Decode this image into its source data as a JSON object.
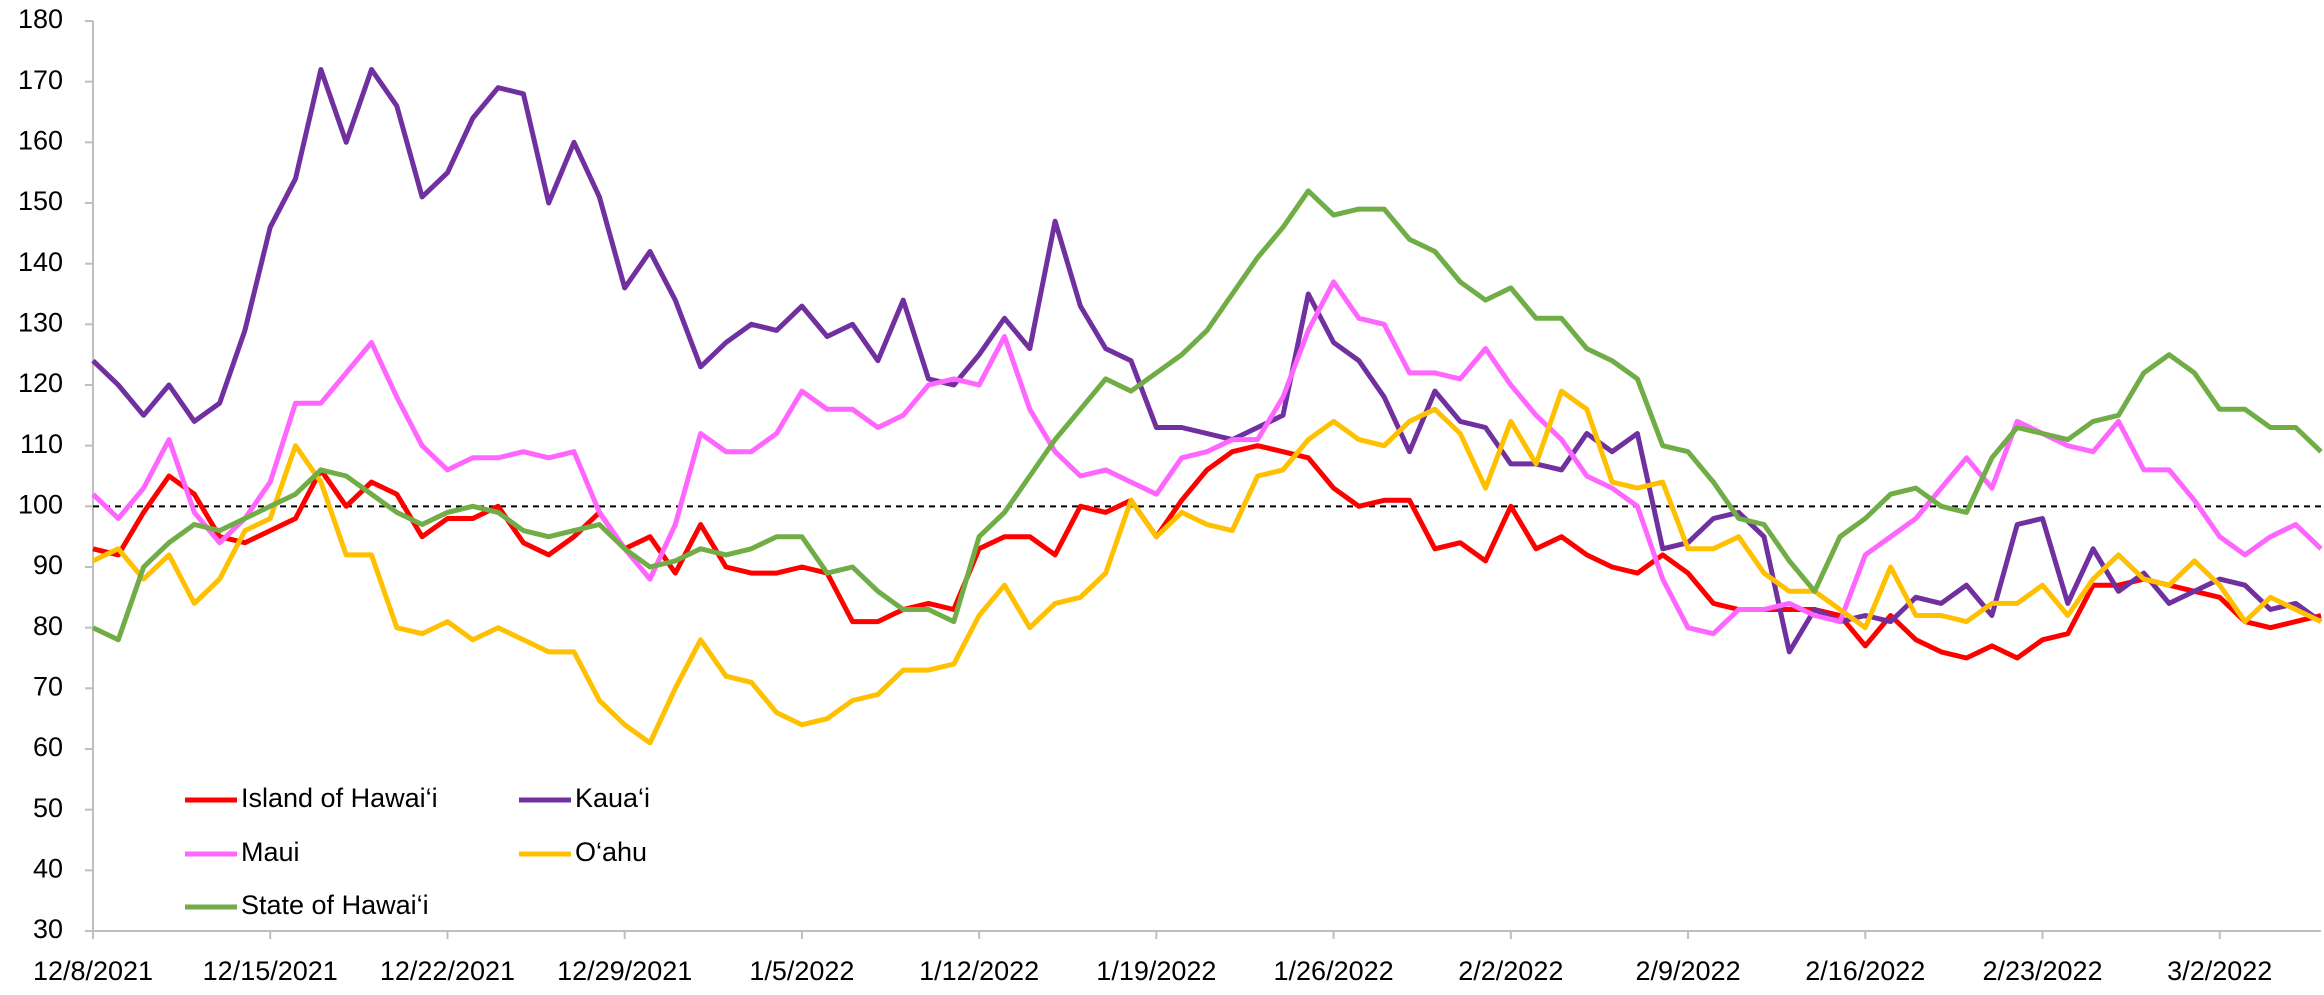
{
  "chart_data": {
    "type": "line",
    "categories": [
      "12/8/2021",
      null,
      null,
      null,
      null,
      null,
      null,
      "12/15/2021",
      null,
      null,
      null,
      null,
      null,
      null,
      "12/22/2021",
      null,
      null,
      null,
      null,
      null,
      null,
      "12/29/2021",
      null,
      null,
      null,
      null,
      null,
      null,
      "1/5/2022",
      null,
      null,
      null,
      null,
      null,
      null,
      "1/12/2022",
      null,
      null,
      null,
      null,
      null,
      null,
      "1/19/2022",
      null,
      null,
      null,
      null,
      null,
      null,
      "1/26/2022",
      null,
      null,
      null,
      null,
      null,
      null,
      "2/2/2022",
      null,
      null,
      null,
      null,
      null,
      null,
      "2/9/2022",
      null,
      null,
      null,
      null,
      null,
      null,
      "2/16/2022",
      null,
      null,
      null,
      null,
      null,
      null,
      "2/23/2022",
      null,
      null,
      null,
      null,
      null,
      null,
      "3/2/2022",
      null,
      null,
      null,
      null
    ],
    "series": [
      {
        "name": "Island of Hawai‘i",
        "color": "#ff0000",
        "values": [
          93,
          92,
          99,
          105,
          102,
          95,
          94,
          96,
          98,
          106,
          100,
          104,
          102,
          95,
          98,
          98,
          100,
          94,
          92,
          95,
          99,
          93,
          95,
          89,
          97,
          90,
          89,
          89,
          90,
          89,
          81,
          81,
          83,
          84,
          83,
          93,
          95,
          95,
          92,
          100,
          99,
          101,
          95,
          101,
          106,
          109,
          110,
          109,
          108,
          103,
          100,
          101,
          101,
          93,
          94,
          91,
          100,
          93,
          95,
          92,
          90,
          89,
          92,
          89,
          84,
          83,
          83,
          83,
          83,
          82,
          77,
          82,
          78,
          76,
          75,
          77,
          75,
          78,
          79,
          87,
          87,
          88,
          87,
          86,
          85,
          81,
          80,
          81,
          82
        ]
      },
      {
        "name": "Kaua‘i",
        "color": "#7030a0",
        "values": [
          124,
          120,
          115,
          120,
          114,
          117,
          129,
          146,
          154,
          172,
          160,
          172,
          166,
          151,
          155,
          164,
          169,
          168,
          150,
          160,
          151,
          136,
          142,
          134,
          123,
          127,
          130,
          129,
          133,
          128,
          130,
          124,
          134,
          121,
          120,
          125,
          131,
          126,
          147,
          133,
          126,
          124,
          113,
          113,
          112,
          111,
          113,
          115,
          135,
          127,
          124,
          118,
          109,
          119,
          114,
          113,
          107,
          107,
          106,
          112,
          109,
          112,
          93,
          94,
          98,
          99,
          95,
          76,
          83,
          81,
          82,
          81,
          85,
          84,
          87,
          82,
          97,
          98,
          84,
          93,
          86,
          89,
          84,
          86,
          88,
          87,
          83,
          84,
          81
        ]
      },
      {
        "name": "Maui",
        "color": "#ff66ff",
        "values": [
          102,
          98,
          103,
          111,
          99,
          94,
          98,
          104,
          117,
          117,
          122,
          127,
          118,
          110,
          106,
          108,
          108,
          109,
          108,
          109,
          99,
          93,
          88,
          97,
          112,
          109,
          109,
          112,
          119,
          116,
          116,
          113,
          115,
          120,
          121,
          120,
          128,
          116,
          109,
          105,
          106,
          104,
          102,
          108,
          109,
          111,
          111,
          118,
          129,
          137,
          131,
          130,
          122,
          122,
          121,
          126,
          120,
          115,
          111,
          105,
          103,
          100,
          88,
          80,
          79,
          83,
          83,
          84,
          82,
          81,
          92,
          95,
          98,
          103,
          108,
          103,
          114,
          112,
          110,
          109,
          114,
          106,
          106,
          101,
          95,
          92,
          95,
          97,
          93
        ]
      },
      {
        "name": "O‘ahu",
        "color": "#ffc000",
        "values": [
          91,
          93,
          88,
          92,
          84,
          88,
          96,
          98,
          110,
          104,
          92,
          92,
          80,
          79,
          81,
          78,
          80,
          78,
          76,
          76,
          68,
          64,
          61,
          70,
          78,
          72,
          71,
          66,
          64,
          65,
          68,
          69,
          73,
          73,
          74,
          82,
          87,
          80,
          84,
          85,
          89,
          101,
          95,
          99,
          97,
          96,
          105,
          106,
          111,
          114,
          111,
          110,
          114,
          116,
          112,
          103,
          114,
          107,
          119,
          116,
          104,
          103,
          104,
          93,
          93,
          95,
          89,
          86,
          86,
          83,
          80,
          90,
          82,
          82,
          81,
          84,
          84,
          87,
          82,
          88,
          92,
          88,
          87,
          91,
          87,
          81,
          85,
          83,
          81
        ]
      },
      {
        "name": "State of Hawai‘i",
        "color": "#70ad47",
        "values": [
          80,
          78,
          90,
          94,
          97,
          96,
          98,
          100,
          102,
          106,
          105,
          102,
          99,
          97,
          99,
          100,
          99,
          96,
          95,
          96,
          97,
          93,
          90,
          91,
          93,
          92,
          93,
          95,
          95,
          89,
          90,
          86,
          83,
          83,
          81,
          95,
          99,
          105,
          111,
          116,
          121,
          119,
          122,
          125,
          129,
          135,
          141,
          146,
          152,
          148,
          149,
          149,
          144,
          142,
          137,
          134,
          136,
          131,
          131,
          126,
          124,
          121,
          110,
          109,
          104,
          98,
          97,
          91,
          86,
          95,
          98,
          102,
          103,
          100,
          99,
          108,
          113,
          112,
          111,
          114,
          115,
          122,
          125,
          122,
          116,
          116,
          113,
          113,
          109
        ]
      }
    ],
    "ylim": [
      30,
      180
    ],
    "yticks": [
      30,
      40,
      50,
      60,
      70,
      80,
      90,
      100,
      110,
      120,
      130,
      140,
      150,
      160,
      170,
      180
    ],
    "reference_line": 100,
    "legend": "lower-left"
  }
}
